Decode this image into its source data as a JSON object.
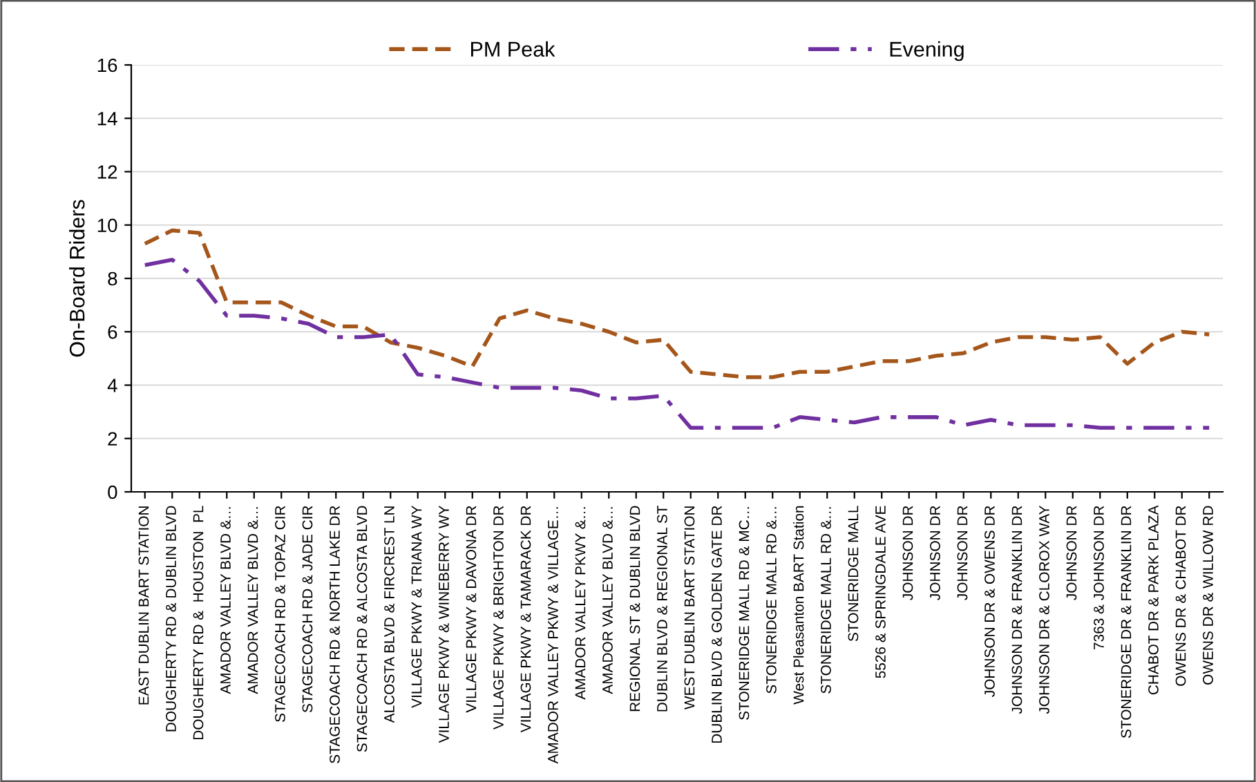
{
  "chart_data": {
    "type": "line",
    "ylabel": "On-Board Riders",
    "categories": [
      "EAST DUBLIN BART STATION",
      "DOUGHERTY RD & DUBLIN BLVD",
      "DOUGHERTY RD &  HOUSTON  PL",
      "AMADOR VALLEY BLVD &…",
      "AMADOR VALLEY BLVD &…",
      "STAGECOACH RD & TOPAZ CIR",
      "STAGECOACH RD & JADE CIR",
      "STAGECOACH RD & NORTH LAKE DR",
      "STAGECOACH RD & ALCOSTA BLVD",
      "ALCOSTA BLVD & FIRCREST LN",
      "VILLAGE PKWY & TRIANA WY",
      "VILLAGE PKWY & WINEBERRY WY",
      "VILLAGE PKWY & DAVONA DR",
      "VILLAGE PKWY & BRIGHTON DR",
      "VILLAGE PKWY & TAMARACK DR",
      "AMADOR VALLEY PKWY & VILLAGE…",
      "AMADOR VALLEY PKWY &…",
      "AMADOR VALLEY BLVD &…",
      "REGIONAL ST & DUBLIN BLVD",
      "DUBLIN BLVD & REGIONAL ST",
      "WEST DUBLIN BART STATION",
      "DUBLIN BLVD & GOLDEN GATE DR",
      "STONERIDGE MALL RD & MC…",
      "STONERIDGE MALL RD &…",
      "West Pleasanton BART Station",
      "STONERIDGE MALL RD &…",
      "STONERIDGE MALL",
      "5526 & SPRINGDALE AVE",
      "JOHNSON DR",
      "JOHNSON DR",
      "JOHNSON DR",
      "JOHNSON DR & OWENS DR",
      "JOHNSON DR & FRANKLIN DR",
      "JOHNSON DR & CLOROX WAY",
      "JOHNSON DR",
      "7363 & JOHNSON DR",
      "STONERIDGE DR & FRANKLIN DR",
      "CHABOT DR & PARK PLAZA",
      "OWENS DR & CHABOT DR",
      "OWENS DR & WILLOW RD"
    ],
    "series": [
      {
        "name": "PM Peak",
        "color": "#a5561b",
        "line_style": "dashed",
        "values": [
          9.3,
          9.8,
          9.7,
          7.1,
          7.1,
          7.1,
          6.6,
          6.2,
          6.2,
          5.6,
          5.4,
          5.1,
          4.7,
          6.5,
          6.8,
          6.5,
          6.3,
          6.0,
          5.6,
          5.7,
          4.5,
          4.4,
          4.3,
          4.3,
          4.5,
          4.5,
          4.7,
          4.9,
          4.9,
          5.1,
          5.2,
          5.6,
          5.8,
          5.8,
          5.7,
          5.8,
          4.8,
          5.6,
          6.0,
          5.9
        ]
      },
      {
        "name": "Evening",
        "color": "#7030a0",
        "line_style": "dashdot",
        "values": [
          8.5,
          8.7,
          7.9,
          6.6,
          6.6,
          6.5,
          6.3,
          5.8,
          5.8,
          5.9,
          4.4,
          4.3,
          4.1,
          3.9,
          3.9,
          3.9,
          3.8,
          3.5,
          3.5,
          3.6,
          2.4,
          2.4,
          2.4,
          2.4,
          2.8,
          2.7,
          2.6,
          2.8,
          2.8,
          2.8,
          2.5,
          2.7,
          2.5,
          2.5,
          2.5,
          2.4,
          2.4,
          2.4,
          2.4,
          2.4
        ]
      }
    ],
    "ylim": [
      0,
      16
    ],
    "yticks": [
      0,
      2,
      4,
      6,
      8,
      10,
      12,
      14,
      16
    ],
    "grid": "y",
    "legend": "top",
    "marker": "none"
  }
}
